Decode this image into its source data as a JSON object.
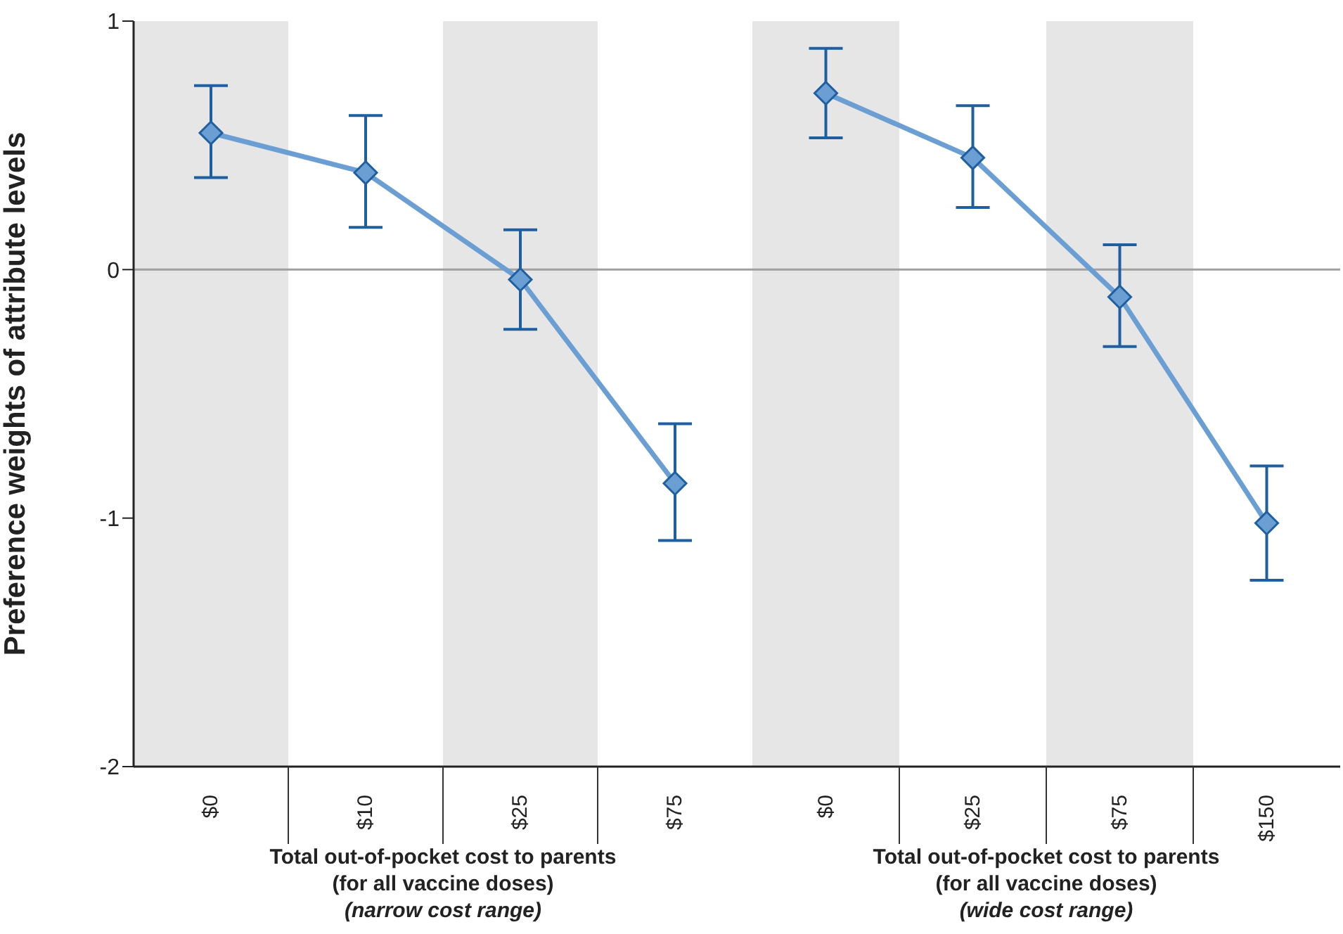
{
  "chart_data": [
    {
      "type": "line",
      "ylabel": "Preference weights of attribute levels",
      "xlabel": "Total out-of-pocket cost to parents\n(for all vaccine doses)\n(narrow cost range)",
      "categories": [
        "$0",
        "$10",
        "$25",
        "$75"
      ],
      "series": [
        {
          "color": "#6b9fd3",
          "values": [
            0.55,
            0.39,
            -0.04,
            -0.86
          ],
          "errors": [
            [
              0.37,
              0.74
            ],
            [
              0.17,
              0.62
            ],
            [
              -0.24,
              0.16
            ],
            [
              -1.09,
              -0.62
            ]
          ]
        }
      ],
      "ylim": [
        -2,
        1
      ],
      "yticks": [
        -2,
        -1,
        0,
        1
      ],
      "marker": "diamond",
      "grid": false,
      "legend": false,
      "ref_lines": [
        {
          "axis": "y",
          "value": 0,
          "color": "#a0a0a0"
        }
      ],
      "bands": [
        {
          "axis": "x",
          "from": "$0",
          "to": "$0",
          "color": "#e6e6e6"
        },
        {
          "axis": "x",
          "from": "$25",
          "to": "$25",
          "color": "#e6e6e6"
        }
      ]
    },
    {
      "type": "line",
      "xlabel": "Total out-of-pocket cost to parents\n(for all vaccine doses)\n(wide cost range)",
      "categories": [
        "$0",
        "$25",
        "$75",
        "$150"
      ],
      "tick_labels": "x",
      "series": [
        {
          "color": "#6b9fd3",
          "values": [
            0.71,
            0.45,
            -0.11,
            -1.02
          ],
          "errors": [
            [
              0.53,
              0.89
            ],
            [
              0.25,
              0.66
            ],
            [
              -0.31,
              0.1
            ],
            [
              -1.25,
              -0.79
            ]
          ]
        }
      ],
      "ylim": [
        -2,
        1
      ],
      "yticks": [
        -2,
        -1,
        0,
        1
      ],
      "marker": "diamond",
      "grid": false,
      "legend": false,
      "ref_lines": [
        {
          "axis": "y",
          "value": 0,
          "color": "#a0a0a0"
        }
      ],
      "bands": [
        {
          "axis": "x",
          "from": "$0",
          "to": "$0",
          "color": "#e6e6e6"
        },
        {
          "axis": "x",
          "from": "$75",
          "to": "$75",
          "color": "#e6e6e6"
        }
      ]
    }
  ]
}
